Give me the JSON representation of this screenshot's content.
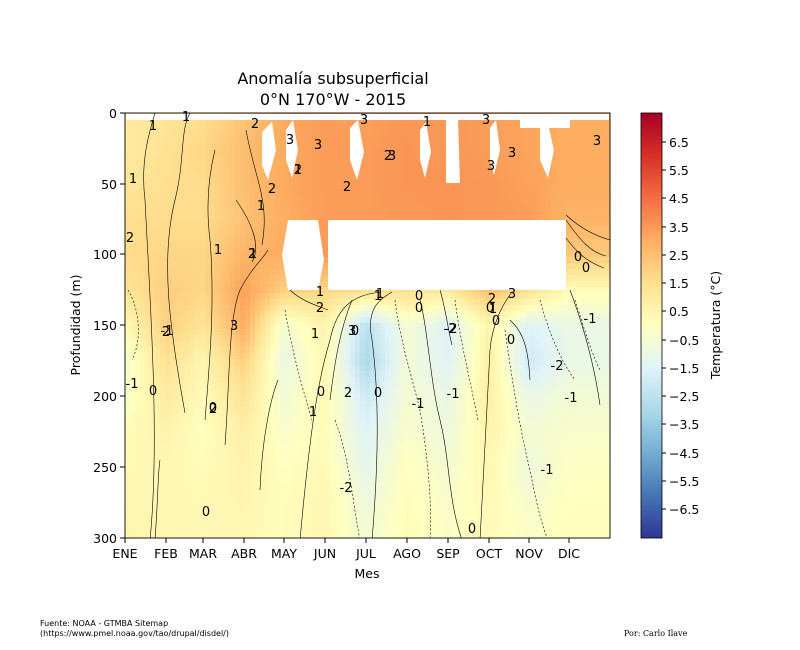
{
  "chart_data": {
    "type": "heatmap",
    "title": "Anomalía subsuperficial",
    "subtitle": "0°N 170°W - 2015",
    "xlabel": "Mes",
    "ylabel": "Profundidad (m)",
    "x_ticks": [
      "ENE",
      "FEB",
      "MAR",
      "ABR",
      "MAY",
      "JUN",
      "JUL",
      "AGO",
      "SEP",
      "OCT",
      "NOV",
      "DIC"
    ],
    "y_ticks": [
      "0",
      "50",
      "100",
      "150",
      "200",
      "250",
      "300"
    ],
    "ylim": [
      300,
      0
    ],
    "colorbar": {
      "label": "Temperatura (°C)",
      "range": [
        -7.5,
        7.5
      ],
      "ticks": [
        "6.5",
        "5.5",
        "4.5",
        "3.5",
        "2.5",
        "1.5",
        "0.5",
        "−0.5",
        "−1.5",
        "−2.5",
        "−3.5",
        "−4.5",
        "−5.5",
        "−6.5"
      ],
      "colormap": [
        "#313695",
        "#4575b4",
        "#74add1",
        "#abd9e9",
        "#e0f3f8",
        "#ffffbf",
        "#fee090",
        "#fdae61",
        "#f46d43",
        "#d73027",
        "#a50026"
      ]
    },
    "depths": [
      0,
      25,
      50,
      75,
      100,
      125,
      150,
      175,
      200,
      225,
      250,
      275,
      300
    ],
    "anomaly_profiles": [
      {
        "month": "ENE",
        "values": [
          1.0,
          1.0,
          1.2,
          1.5,
          1.6,
          1.3,
          0.3,
          -0.5,
          -0.3,
          0.2,
          0.3,
          0.4,
          0.5
        ]
      },
      {
        "month": "FEB",
        "values": [
          1.3,
          1.4,
          1.5,
          1.6,
          1.8,
          2.0,
          2.0,
          1.4,
          1.0,
          0.6,
          0.4,
          0.4,
          0.4
        ]
      },
      {
        "month": "MAR",
        "values": [
          1.5,
          1.8,
          1.6,
          1.6,
          1.8,
          1.8,
          1.3,
          0.5,
          0.2,
          0.0,
          0.2,
          0.3,
          0.3
        ]
      },
      {
        "month": "ABR",
        "values": [
          2.3,
          2.5,
          2.5,
          2.4,
          2.8,
          3.3,
          3.0,
          2.0,
          1.3,
          0.8,
          0.6,
          0.5,
          0.4
        ]
      },
      {
        "month": "MAY",
        "values": [
          3.1,
          3.1,
          3.1,
          3.0,
          3.0,
          2.0,
          -0.5,
          -1.0,
          -0.6,
          -0.3,
          0.0,
          0.1,
          0.1
        ]
      },
      {
        "month": "JUN",
        "values": [
          3.4,
          3.4,
          3.4,
          3.4,
          3.5,
          1.8,
          0.6,
          0.4,
          0.3,
          0.2,
          0.3,
          0.4,
          0.4
        ]
      },
      {
        "month": "JUL",
        "values": [
          3.3,
          3.4,
          3.4,
          3.4,
          3.5,
          1.5,
          -2.5,
          -3.0,
          -2.0,
          -1.5,
          -1.2,
          -0.8,
          -0.5
        ]
      },
      {
        "month": "AGO",
        "values": [
          3.5,
          3.6,
          3.6,
          3.5,
          3.5,
          1.5,
          -0.5,
          -0.6,
          -0.5,
          -0.3,
          0.0,
          0.1,
          0.2
        ]
      },
      {
        "month": "SEP",
        "values": [
          3.5,
          3.5,
          3.6,
          3.6,
          3.6,
          1.0,
          -1.5,
          -1.5,
          -1.0,
          -0.8,
          -0.5,
          -0.3,
          -0.2
        ]
      },
      {
        "month": "OCT",
        "values": [
          3.4,
          3.4,
          3.5,
          3.5,
          3.5,
          2.5,
          0.5,
          0.8,
          0.8,
          0.6,
          0.4,
          0.3,
          0.2
        ]
      },
      {
        "month": "NOV",
        "values": [
          3.2,
          3.2,
          3.3,
          3.4,
          3.4,
          1.5,
          -1.5,
          -2.0,
          -1.0,
          -0.5,
          -0.8,
          -0.4,
          -0.2
        ]
      },
      {
        "month": "DIC",
        "values": [
          3.0,
          3.0,
          3.0,
          2.8,
          2.2,
          0.2,
          -1.0,
          -1.0,
          -0.6,
          -0.3,
          -0.1,
          0.0,
          0.1
        ]
      }
    ],
    "contour_labels": [
      "1",
      "1",
      "1",
      "2",
      "2",
      "1",
      "2",
      "2",
      "2",
      "1",
      "2",
      "3",
      "0",
      "1",
      "3",
      "3",
      "1",
      "2",
      "1",
      "0",
      "3",
      "2",
      "1",
      "3",
      "1",
      "0",
      "1",
      "3",
      "2",
      "0",
      "0",
      "-2",
      "1",
      "0",
      "-1",
      "0",
      "-1",
      "-2",
      "3",
      "0",
      "-2",
      "2",
      "1",
      "0",
      "3",
      "0",
      "0",
      "0",
      "-1",
      "-1",
      "-2",
      "-1",
      "0",
      "-1",
      "0",
      "-1",
      "1",
      "2",
      "2",
      "3",
      "3",
      "3"
    ]
  },
  "footer": {
    "source_line1": "Fuente: NOAA - GTMBA Sitemap",
    "source_line2": "(https://www.pmel.noaa.gov/tao/drupal/disdel/)",
    "author": "Por: Carlo Ilave"
  }
}
